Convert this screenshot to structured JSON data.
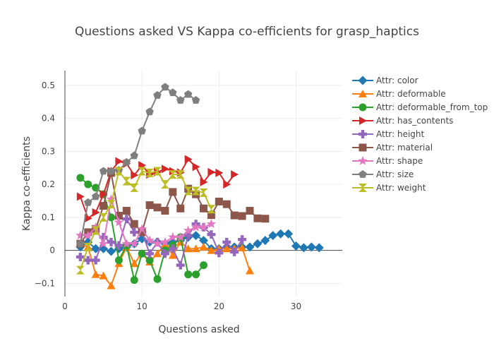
{
  "chart_data": {
    "type": "line",
    "title": "Questions asked VS Kappa co-efficients for grasp_haptics",
    "xlabel": "Questions asked",
    "ylabel": "Kappa co-efficients",
    "xlim": [
      0,
      36
    ],
    "ylim": [
      -0.14,
      0.545
    ],
    "xticks": [
      0,
      10,
      20,
      30
    ],
    "xtick_labels": [
      "0",
      "10",
      "20",
      "30"
    ],
    "yticks": [
      -0.1,
      0,
      0.1,
      0.2,
      0.3,
      0.4,
      0.5
    ],
    "ytick_labels": [
      "−0.1",
      "0",
      "0.1",
      "0.2",
      "0.3",
      "0.4",
      "0.5"
    ],
    "grid": true,
    "legend": "right",
    "series": [
      {
        "name": "Attr: color",
        "color": "#1f77b4",
        "marker": "diamond",
        "x": [
          2,
          3,
          4,
          5,
          6,
          7,
          8,
          9,
          10,
          11,
          12,
          13,
          14,
          15,
          16,
          17,
          18,
          19,
          20,
          21,
          22,
          23,
          24,
          25,
          26,
          27,
          28,
          29,
          30,
          31,
          32,
          33
        ],
        "y": [
          0.01,
          0.025,
          0.005,
          0.005,
          -0.003,
          0.005,
          0.01,
          0.02,
          0.035,
          0.025,
          0.025,
          0.02,
          0.025,
          0.03,
          0.04,
          0.045,
          0.03,
          0.005,
          0.005,
          0.01,
          0.01,
          0.01,
          0.01,
          0.02,
          0.03,
          0.045,
          0.05,
          0.05,
          0.013,
          0.008,
          0.01,
          0.008
        ]
      },
      {
        "name": "Attr: deformable",
        "color": "#ff7f0e",
        "marker": "triangle-up",
        "x": [
          2,
          3,
          4,
          5,
          6,
          7,
          8,
          9,
          10,
          11,
          12,
          13,
          14,
          15,
          16,
          17,
          18,
          19,
          20,
          21,
          22,
          23,
          24
        ],
        "y": [
          0.02,
          0.01,
          -0.073,
          -0.077,
          -0.107,
          -0.04,
          0.01,
          -0.04,
          -0.01,
          -0.035,
          -0.01,
          0.02,
          -0.015,
          0.025,
          0.005,
          0.005,
          0.01,
          0.0,
          0.005,
          0.005,
          0.005,
          0.008,
          -0.062
        ]
      },
      {
        "name": "Attr: deformable_from_top",
        "color": "#2ca02c",
        "marker": "circle",
        "x": [
          2,
          3,
          4,
          5,
          6,
          7,
          8,
          9,
          10,
          11,
          12,
          13,
          14,
          15,
          16,
          17,
          18
        ],
        "y": [
          0.22,
          0.2,
          0.19,
          0.17,
          0.1,
          -0.03,
          0.015,
          -0.09,
          -0.01,
          -0.03,
          -0.087,
          0.0,
          0.015,
          0.04,
          -0.073,
          -0.073,
          -0.045
        ]
      },
      {
        "name": "Attr: has_contents",
        "color": "#d62728",
        "marker": "triangle-right",
        "x": [
          2,
          3,
          4,
          5,
          6,
          7,
          8,
          9,
          10,
          11,
          12,
          13,
          14,
          15,
          16,
          17,
          18,
          19,
          20,
          21,
          22
        ],
        "y": [
          0.163,
          0.097,
          0.115,
          0.17,
          0.24,
          0.27,
          0.263,
          0.228,
          0.258,
          0.23,
          0.237,
          0.247,
          0.24,
          0.236,
          0.276,
          0.253,
          0.207,
          0.237,
          0.235,
          0.2,
          0.23
        ]
      },
      {
        "name": "Attr: height",
        "color": "#9467bd",
        "marker": "cross",
        "x": [
          2,
          3,
          4,
          5,
          6,
          7,
          8,
          9,
          10,
          11,
          12,
          13,
          14,
          15,
          16,
          17,
          18,
          19,
          20,
          21,
          22,
          23
        ],
        "y": [
          -0.02,
          -0.03,
          -0.03,
          0.04,
          0.025,
          0.015,
          0.095,
          0.055,
          0.055,
          -0.01,
          0.025,
          -0.01,
          0.005,
          -0.045,
          0.045,
          0.08,
          0.07,
          0.048,
          -0.008,
          0.025,
          -0.005,
          0.033
        ]
      },
      {
        "name": "Attr: material",
        "color": "#8c564b",
        "marker": "square",
        "x": [
          2,
          3,
          4,
          5,
          6,
          7,
          8,
          9,
          10,
          11,
          12,
          13,
          14,
          15,
          16,
          17,
          18,
          19,
          20,
          21,
          22,
          23,
          24,
          25,
          26
        ],
        "y": [
          0.02,
          0.055,
          0.065,
          0.135,
          0.235,
          0.105,
          0.12,
          0.08,
          0.055,
          0.137,
          0.13,
          0.12,
          0.177,
          0.127,
          0.187,
          0.17,
          0.127,
          0.107,
          0.148,
          0.14,
          0.106,
          0.104,
          0.12,
          0.097,
          0.096
        ]
      },
      {
        "name": "Attr: shape",
        "color": "#e377c2",
        "marker": "star",
        "x": [
          2,
          3,
          4,
          5,
          6,
          7,
          8,
          9,
          10,
          11,
          12,
          13,
          14,
          15,
          16,
          17,
          18,
          19
        ],
        "y": [
          0.045,
          0.045,
          0.07,
          0.02,
          0.155,
          0.085,
          0.02,
          0.02,
          0.065,
          0.03,
          0.02,
          0.025,
          0.04,
          0.04,
          0.06,
          0.07,
          0.07,
          0.08
        ]
      },
      {
        "name": "Attr: size",
        "color": "#7f7f7f",
        "marker": "pentagon",
        "x": [
          2,
          3,
          4,
          5,
          6,
          7,
          8,
          9,
          10,
          11,
          12,
          13,
          14,
          15,
          16,
          17
        ],
        "y": [
          0.02,
          0.145,
          0.163,
          0.24,
          0.24,
          0.243,
          0.267,
          0.287,
          0.362,
          0.42,
          0.47,
          0.495,
          0.478,
          0.455,
          0.473,
          0.455
        ]
      },
      {
        "name": "Attr: weight",
        "color": "#bcbd22",
        "marker": "hourglass",
        "x": [
          2,
          3,
          4,
          5,
          6,
          7,
          8,
          9,
          10,
          11,
          12,
          13,
          14,
          15,
          16,
          17,
          18,
          19
        ],
        "y": [
          -0.06,
          0.01,
          0.06,
          0.1,
          0.14,
          0.24,
          0.21,
          0.19,
          0.24,
          0.235,
          0.24,
          0.2,
          0.23,
          0.23,
          0.18,
          0.18,
          0.175,
          0.125
        ]
      }
    ]
  }
}
